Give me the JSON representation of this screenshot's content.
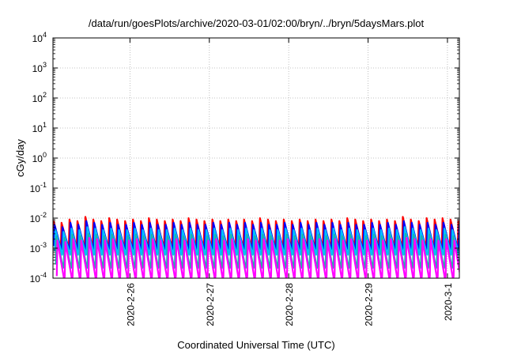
{
  "chart_data": {
    "type": "line",
    "title": "/data/run/goesPlots/archive/2020-03-01/02:00/bryn/../bryn/5daysMars.plot",
    "xlabel": "Coordinated Universal Time (UTC)",
    "ylabel": "cGy/day",
    "y_scale": "log",
    "ylim": [
      0.0001,
      10000
    ],
    "y_ticks": [
      {
        "value": 0.0001,
        "base": "10",
        "exp": "-4"
      },
      {
        "value": 0.001,
        "base": "10",
        "exp": "-3"
      },
      {
        "value": 0.01,
        "base": "10",
        "exp": "-2"
      },
      {
        "value": 0.1,
        "base": "10",
        "exp": "-1"
      },
      {
        "value": 1,
        "base": "10",
        "exp": "0"
      },
      {
        "value": 10,
        "base": "10",
        "exp": "1"
      },
      {
        "value": 100,
        "base": "10",
        "exp": "2"
      },
      {
        "value": 1000,
        "base": "10",
        "exp": "3"
      },
      {
        "value": 10000,
        "base": "10",
        "exp": "4"
      }
    ],
    "xlim": [
      0.0,
      5.12
    ],
    "x_units": "days since start of plotted window",
    "x_ticks": [
      {
        "value": 0.97,
        "label": "2020-2-26"
      },
      {
        "value": 1.97,
        "label": "2020-2-27"
      },
      {
        "value": 2.97,
        "label": "2020-2-28"
      },
      {
        "value": 3.97,
        "label": "2020-2-29"
      },
      {
        "value": 4.97,
        "label": "2020-3-1"
      }
    ],
    "grid": true,
    "sawtooth_period_days": 0.1,
    "series": [
      {
        "color": "#ff0000",
        "peaks": [
          0.008,
          0.007,
          0.009,
          0.008,
          0.011,
          0.009,
          0.008,
          0.01,
          0.009,
          0.008,
          0.009,
          0.008,
          0.01,
          0.009,
          0.008,
          0.009,
          0.008,
          0.01,
          0.009,
          0.008,
          0.009,
          0.008,
          0.009,
          0.008,
          0.009,
          0.008,
          0.01,
          0.009,
          0.008,
          0.009,
          0.008,
          0.009,
          0.008,
          0.009,
          0.008,
          0.009,
          0.008,
          0.01,
          0.009,
          0.008,
          0.009,
          0.008,
          0.009,
          0.008,
          0.011,
          0.009,
          0.008,
          0.01,
          0.009,
          0.01,
          0.009,
          0.008
        ],
        "trough": 0.0011
      },
      {
        "color": "#0000ff",
        "peaks": [
          0.006,
          0.005,
          0.007,
          0.006,
          0.008,
          0.007,
          0.006,
          0.007,
          0.006,
          0.006,
          0.007,
          0.006,
          0.007,
          0.006,
          0.006,
          0.007,
          0.006,
          0.007,
          0.006,
          0.006,
          0.007,
          0.006,
          0.007,
          0.006,
          0.007,
          0.006,
          0.007,
          0.006,
          0.006,
          0.007,
          0.006,
          0.007,
          0.006,
          0.007,
          0.006,
          0.007,
          0.006,
          0.007,
          0.006,
          0.006,
          0.007,
          0.006,
          0.007,
          0.006,
          0.008,
          0.007,
          0.006,
          0.007,
          0.006,
          0.007,
          0.006,
          0.006
        ],
        "trough": 0.0009
      },
      {
        "color": "#00bfff",
        "peaks": [
          0.004,
          0.0035,
          0.0045,
          0.004,
          0.005,
          0.0045,
          0.004,
          0.0045,
          0.004,
          0.004,
          0.0045,
          0.004,
          0.0045,
          0.004,
          0.004,
          0.0045,
          0.004,
          0.0045,
          0.004,
          0.004,
          0.0045,
          0.004,
          0.0045,
          0.004,
          0.0045,
          0.004,
          0.0045,
          0.004,
          0.004,
          0.0045,
          0.004,
          0.0045,
          0.004,
          0.0045,
          0.004,
          0.0045,
          0.004,
          0.0045,
          0.004,
          0.004,
          0.0045,
          0.004,
          0.0045,
          0.004,
          0.005,
          0.0045,
          0.004,
          0.0045,
          0.004,
          0.0045,
          0.004,
          0.004
        ],
        "trough": 0.0006
      },
      {
        "color": "#20b2aa",
        "peaks": [
          0.0025,
          0.0022,
          0.0028,
          0.0025,
          0.003,
          0.0028,
          0.0025,
          0.0028,
          0.0025,
          0.0025,
          0.0028,
          0.0025,
          0.0028,
          0.0025,
          0.0025,
          0.0028,
          0.0025,
          0.0028,
          0.0025,
          0.0025,
          0.0028,
          0.0025,
          0.0028,
          0.0025,
          0.0028,
          0.0025,
          0.0028,
          0.0025,
          0.0025,
          0.0028,
          0.0025,
          0.0028,
          0.0025,
          0.0028,
          0.0025,
          0.0028,
          0.0025,
          0.0028,
          0.0025,
          0.0025,
          0.0028,
          0.0025,
          0.0028,
          0.0025,
          0.003,
          0.0028,
          0.0025,
          0.0028,
          0.0025,
          0.0028,
          0.0025,
          0.0025
        ],
        "trough": 0.00022
      },
      {
        "color": "#ff00ff",
        "peaks": [
          0.0018,
          0.0016,
          0.002,
          0.0018,
          0.0022,
          0.002,
          0.0018,
          0.002,
          0.0018,
          0.0018,
          0.002,
          0.0018,
          0.002,
          0.0018,
          0.0018,
          0.002,
          0.0018,
          0.002,
          0.0018,
          0.0018,
          0.002,
          0.0018,
          0.002,
          0.0018,
          0.002,
          0.0018,
          0.002,
          0.0018,
          0.0018,
          0.002,
          0.0018,
          0.002,
          0.0018,
          0.002,
          0.0018,
          0.002,
          0.0018,
          0.002,
          0.0018,
          0.0018,
          0.002,
          0.0018,
          0.002,
          0.0018,
          0.0022,
          0.002,
          0.0018,
          0.002,
          0.0018,
          0.002,
          0.0018,
          0.0018
        ],
        "trough": 9e-05
      }
    ]
  }
}
